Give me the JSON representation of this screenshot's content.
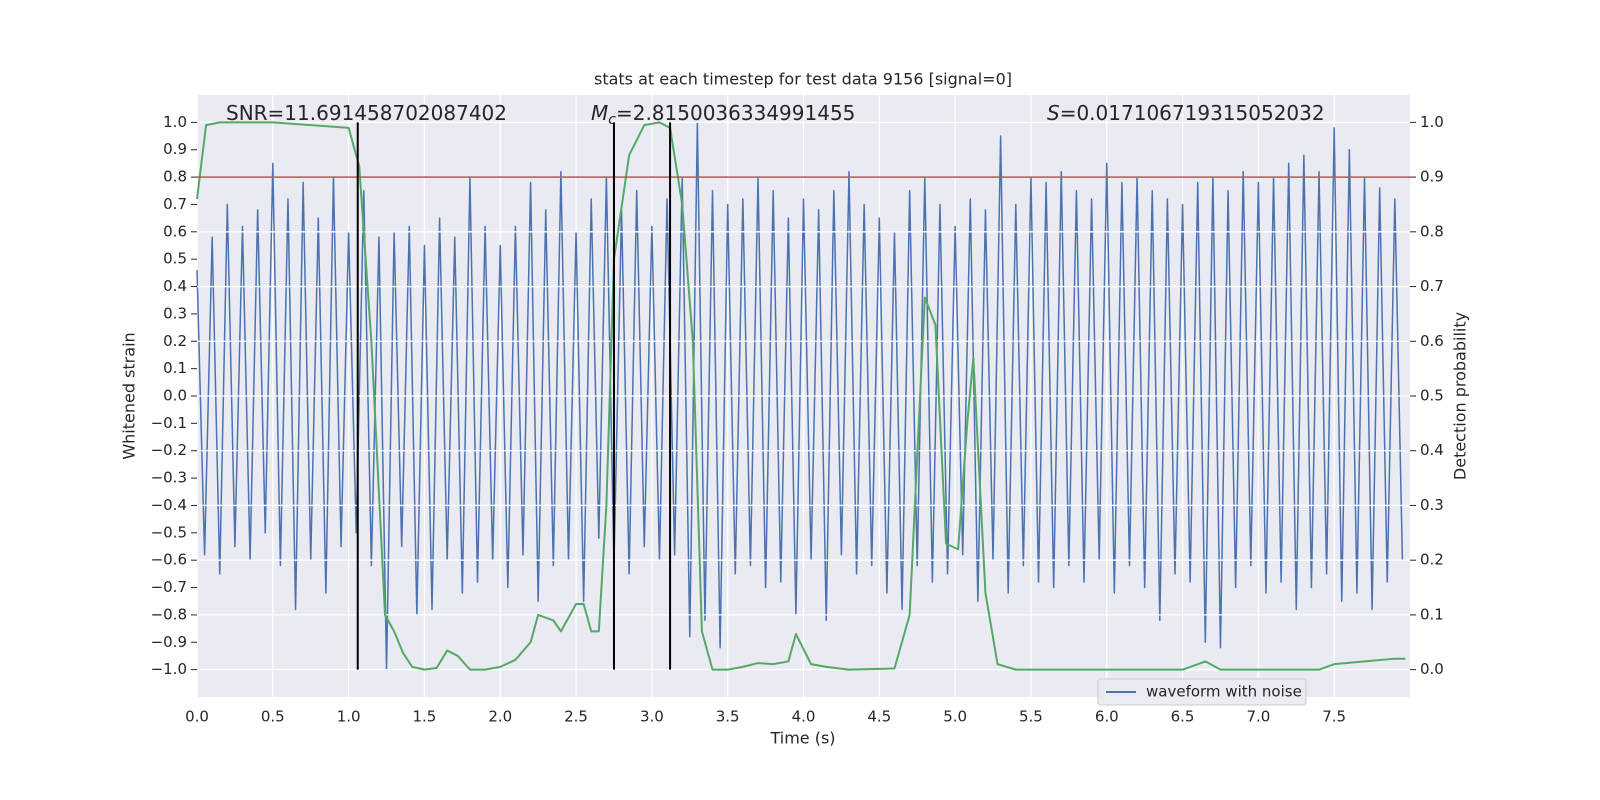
{
  "chart_data": {
    "type": "line",
    "title": "stats at each timestep for test data 9156 [signal=0]",
    "xlabel": "Time (s)",
    "ylabel": "Whitened strain",
    "y2label": "Detection probability",
    "xlim": [
      0,
      8
    ],
    "ylim": [
      -1.1,
      1.1
    ],
    "y2lim": [
      -0.05,
      1.05
    ],
    "grid": true,
    "legend": "lower right",
    "xticks": [
      {
        "value": 0,
        "label": "0.0"
      },
      {
        "value": 0.5,
        "label": "0.5"
      },
      {
        "value": 1,
        "label": "1.0"
      },
      {
        "value": 1.5,
        "label": "1.5"
      },
      {
        "value": 2,
        "label": "2.0"
      },
      {
        "value": 2.5,
        "label": "2.5"
      },
      {
        "value": 3,
        "label": "3.0"
      },
      {
        "value": 3.5,
        "label": "3.5"
      },
      {
        "value": 4,
        "label": "4.0"
      },
      {
        "value": 4.5,
        "label": "4.5"
      },
      {
        "value": 5,
        "label": "5.0"
      },
      {
        "value": 5.5,
        "label": "5.5"
      },
      {
        "value": 6,
        "label": "6.0"
      },
      {
        "value": 6.5,
        "label": "6.5"
      },
      {
        "value": 7,
        "label": "7.0"
      },
      {
        "value": 7.5,
        "label": "7.5"
      }
    ],
    "yticks": [
      {
        "value": -1,
        "label": "−1.0"
      },
      {
        "value": -0.9,
        "label": "−0.9"
      },
      {
        "value": -0.8,
        "label": "−0.8"
      },
      {
        "value": -0.7,
        "label": "−0.7"
      },
      {
        "value": -0.6,
        "label": "−0.6"
      },
      {
        "value": -0.5,
        "label": "−0.5"
      },
      {
        "value": -0.4,
        "label": "−0.4"
      },
      {
        "value": -0.3,
        "label": "−0.3"
      },
      {
        "value": -0.2,
        "label": "−0.2"
      },
      {
        "value": -0.1,
        "label": "−0.1"
      },
      {
        "value": 0,
        "label": "0.0"
      },
      {
        "value": 0.1,
        "label": "0.1"
      },
      {
        "value": 0.2,
        "label": "0.2"
      },
      {
        "value": 0.3,
        "label": "0.3"
      },
      {
        "value": 0.4,
        "label": "0.4"
      },
      {
        "value": 0.5,
        "label": "0.5"
      },
      {
        "value": 0.6,
        "label": "0.6"
      },
      {
        "value": 0.7,
        "label": "0.7"
      },
      {
        "value": 0.8,
        "label": "0.8"
      },
      {
        "value": 0.9,
        "label": "0.9"
      },
      {
        "value": 1,
        "label": "1.0"
      }
    ],
    "y2ticks": [
      {
        "value": 0,
        "label": "0.0"
      },
      {
        "value": 0.1,
        "label": "0.1"
      },
      {
        "value": 0.2,
        "label": "0.2"
      },
      {
        "value": 0.3,
        "label": "0.3"
      },
      {
        "value": 0.4,
        "label": "0.4"
      },
      {
        "value": 0.5,
        "label": "0.5"
      },
      {
        "value": 0.6,
        "label": "0.6"
      },
      {
        "value": 0.7,
        "label": "0.7"
      },
      {
        "value": 0.8,
        "label": "0.8"
      },
      {
        "value": 0.9,
        "label": "0.9"
      },
      {
        "value": 1,
        "label": "1.0"
      }
    ],
    "annotations": [
      {
        "text": "SNR=11.691458702087402"
      },
      {
        "symbol": "M",
        "sub": "c",
        "text": "=2.8150036334991455"
      },
      {
        "symbol": "S",
        "text": "=0.017106719315052032"
      }
    ],
    "hlines": [
      {
        "value": 0.9,
        "axis": "y2",
        "color": "#c44e52"
      }
    ],
    "vlines": {
      "x": [
        1.06,
        2.75,
        3.12
      ],
      "ymin": -1,
      "ymax": 1,
      "color": "#000000"
    },
    "series": [
      {
        "name": "waveform with noise",
        "color": "#4c72b0",
        "x": [
          0,
          0.05,
          0.1,
          0.15,
          0.2,
          0.25,
          0.3,
          0.35,
          0.4,
          0.45,
          0.5,
          0.55,
          0.6,
          0.65,
          0.7,
          0.75,
          0.8,
          0.85,
          0.9,
          0.95,
          1,
          1.05,
          1.1,
          1.15,
          1.2,
          1.25,
          1.3,
          1.35,
          1.4,
          1.45,
          1.5,
          1.55,
          1.6,
          1.65,
          1.7,
          1.75,
          1.8,
          1.85,
          1.9,
          1.95,
          2,
          2.05,
          2.1,
          2.15,
          2.2,
          2.25,
          2.3,
          2.35,
          2.4,
          2.45,
          2.5,
          2.55,
          2.6,
          2.65,
          2.7,
          2.75,
          2.8,
          2.85,
          2.9,
          2.95,
          3,
          3.05,
          3.1,
          3.15,
          3.2,
          3.25,
          3.3,
          3.35,
          3.4,
          3.45,
          3.5,
          3.55,
          3.6,
          3.65,
          3.7,
          3.75,
          3.8,
          3.85,
          3.9,
          3.95,
          4,
          4.05,
          4.1,
          4.15,
          4.2,
          4.25,
          4.3,
          4.35,
          4.4,
          4.45,
          4.5,
          4.55,
          4.6,
          4.65,
          4.7,
          4.75,
          4.8,
          4.85,
          4.9,
          4.95,
          5,
          5.05,
          5.1,
          5.15,
          5.2,
          5.25,
          5.3,
          5.35,
          5.4,
          5.45,
          5.5,
          5.55,
          5.6,
          5.65,
          5.7,
          5.75,
          5.8,
          5.85,
          5.9,
          5.95,
          6,
          6.05,
          6.1,
          6.15,
          6.2,
          6.25,
          6.3,
          6.35,
          6.4,
          6.45,
          6.5,
          6.55,
          6.6,
          6.65,
          6.7,
          6.75,
          6.8,
          6.85,
          6.9,
          6.95,
          7,
          7.05,
          7.1,
          7.15,
          7.2,
          7.25,
          7.3,
          7.35,
          7.4,
          7.45,
          7.5,
          7.55,
          7.6,
          7.65,
          7.7,
          7.75,
          7.8,
          7.85,
          7.9,
          7.95
        ],
        "values": [
          0.46,
          -0.58,
          0.58,
          -0.65,
          0.7,
          -0.55,
          0.62,
          -0.6,
          0.68,
          -0.5,
          0.85,
          -0.62,
          0.72,
          -0.78,
          0.78,
          -0.6,
          0.65,
          -0.72,
          0.8,
          -0.55,
          0.6,
          -0.5,
          0.75,
          -0.62,
          0.58,
          -1.0,
          0.6,
          -0.55,
          0.62,
          -0.8,
          0.55,
          -0.78,
          0.65,
          -0.6,
          0.58,
          -0.72,
          0.8,
          -0.68,
          0.62,
          -0.6,
          0.55,
          -0.7,
          0.62,
          -0.58,
          0.78,
          -0.75,
          0.68,
          -0.62,
          0.82,
          -0.6,
          0.6,
          -0.75,
          0.72,
          -0.52,
          0.8,
          -0.62,
          0.68,
          -0.65,
          0.75,
          -0.55,
          0.62,
          -0.6,
          0.72,
          -0.58,
          0.8,
          -0.88,
          1.0,
          -0.82,
          0.75,
          -0.92,
          0.7,
          -0.65,
          0.72,
          -0.62,
          0.8,
          -0.7,
          0.75,
          -0.68,
          0.65,
          -0.8,
          0.72,
          -0.6,
          0.68,
          -0.82,
          0.75,
          -0.58,
          0.82,
          -0.65,
          0.7,
          -0.62,
          0.65,
          -0.72,
          0.6,
          -0.78,
          0.75,
          -0.62,
          0.8,
          -0.68,
          0.7,
          -0.65,
          0.62,
          -0.58,
          0.72,
          -0.75,
          0.68,
          -0.6,
          0.95,
          -0.72,
          0.7,
          -0.62,
          0.8,
          -0.68,
          0.78,
          -0.7,
          0.82,
          -0.62,
          0.75,
          -0.68,
          0.72,
          -0.6,
          0.85,
          -0.72,
          0.78,
          -0.62,
          0.8,
          -0.7,
          0.75,
          -0.82,
          0.72,
          -0.65,
          0.7,
          -0.68,
          0.78,
          -0.9,
          0.8,
          -0.92,
          0.75,
          -0.7,
          0.82,
          -0.62,
          0.78,
          -0.72,
          0.8,
          -0.68,
          0.85,
          -0.78,
          0.88,
          -0.7,
          0.82,
          -0.65,
          0.98,
          -0.75,
          0.9,
          -0.72,
          0.8,
          -0.78,
          0.76,
          -0.68,
          0.72,
          -0.6
        ]
      },
      {
        "color": "#55a868",
        "axis": "y2",
        "x": [
          0.0,
          0.06,
          0.15,
          0.5,
          1.0,
          1.07,
          1.15,
          1.24,
          1.3,
          1.36,
          1.42,
          1.5,
          1.58,
          1.65,
          1.72,
          1.8,
          1.9,
          2.0,
          2.1,
          2.2,
          2.25,
          2.35,
          2.4,
          2.5,
          2.55,
          2.6,
          2.65,
          2.7,
          2.75,
          2.85,
          2.95,
          3.05,
          3.12,
          3.2,
          3.27,
          3.33,
          3.4,
          3.5,
          3.6,
          3.7,
          3.8,
          3.9,
          3.95,
          4.05,
          4.15,
          4.3,
          4.6,
          4.7,
          4.8,
          4.87,
          4.94,
          5.02,
          5.08,
          5.12,
          5.2,
          5.28,
          5.4,
          6.0,
          6.5,
          6.65,
          6.75,
          7.4,
          7.5,
          7.9,
          7.97
        ],
        "values": [
          0.86,
          0.995,
          1.0,
          1.0,
          0.99,
          0.92,
          0.6,
          0.1,
          0.07,
          0.03,
          0.005,
          0.0,
          0.003,
          0.035,
          0.025,
          0.0,
          0.0,
          0.005,
          0.018,
          0.05,
          0.1,
          0.09,
          0.07,
          0.12,
          0.12,
          0.07,
          0.07,
          0.3,
          0.75,
          0.94,
          0.995,
          1.0,
          0.99,
          0.85,
          0.6,
          0.07,
          0.0,
          0.0,
          0.005,
          0.012,
          0.01,
          0.015,
          0.065,
          0.01,
          0.005,
          0.0,
          0.002,
          0.1,
          0.68,
          0.63,
          0.23,
          0.22,
          0.45,
          0.57,
          0.14,
          0.01,
          0.0,
          0.0,
          0.0,
          0.015,
          0.0,
          0.0,
          0.01,
          0.02,
          0.02
        ]
      }
    ]
  }
}
